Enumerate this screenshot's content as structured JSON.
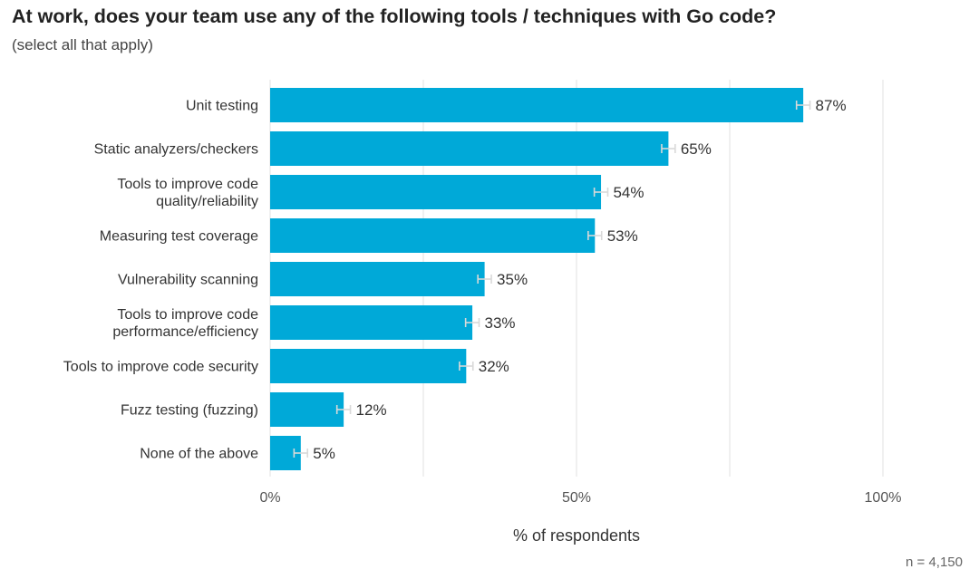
{
  "header": {
    "title": "At work, does your team use any of the following tools / techniques with Go code?",
    "subtitle": "(select all that apply)"
  },
  "footer": {
    "sample_size": "n =  4,150"
  },
  "colors": {
    "bar": "#00A9D8",
    "grid": "#e5e5e5",
    "error_bar": "#d9d9d9"
  },
  "chart_data": {
    "type": "bar",
    "orientation": "horizontal",
    "title": "At work, does your team use any of the following tools / techniques with Go code?",
    "subtitle": "(select all that apply)",
    "categories": [
      [
        "Unit testing"
      ],
      [
        "Static analyzers/checkers"
      ],
      [
        "Tools to improve code",
        "quality/reliability"
      ],
      [
        "Measuring test coverage"
      ],
      [
        "Vulnerability scanning"
      ],
      [
        "Tools to improve code",
        "performance/efficiency"
      ],
      [
        "Tools to improve code security"
      ],
      [
        "Fuzz testing (fuzzing)"
      ],
      [
        "None of the above"
      ]
    ],
    "values": [
      87,
      65,
      54,
      53,
      35,
      33,
      32,
      12,
      5
    ],
    "value_labels": [
      "87%",
      "65%",
      "54%",
      "53%",
      "35%",
      "33%",
      "32%",
      "12%",
      "5%"
    ],
    "error_margin": 1.1,
    "xlabel": "% of respondents",
    "ylabel": "",
    "xlim": [
      0,
      100
    ],
    "x_ticks": [
      0,
      50,
      100
    ],
    "x_tick_labels": [
      "0%",
      "50%",
      "100%"
    ],
    "gridlines": [
      0,
      25,
      50,
      75,
      100
    ],
    "grid": true,
    "error_bars": true,
    "n": "n =  4,150"
  }
}
